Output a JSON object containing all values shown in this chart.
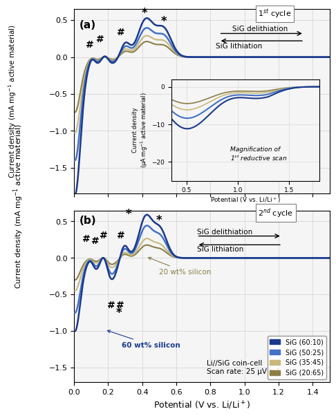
{
  "colors": {
    "dark_blue": "#1a3a8c",
    "mid_blue": "#4472c4",
    "tan_light": "#c8b87c",
    "tan_dark": "#8b7d45",
    "grid_color": "#d0d0d0",
    "bg": "#f5f5f5"
  },
  "xlim": [
    0.0,
    1.5
  ],
  "ylim_a": [
    -1.85,
    0.65
  ],
  "ylim_b": [
    -1.7,
    0.65
  ],
  "xlabel": "Potential (V vs. Li/Li$^+$)",
  "ylabel": "Current density (mA mg$^{-1}$ active material)",
  "legend_labels": [
    "SiG (60:10)",
    "SiG (50:25)",
    "SiG (35:45)",
    "SiG (20:65)"
  ],
  "legend_colors": [
    "#1a3a8c",
    "#4472c4",
    "#c8b87c",
    "#8b7d45"
  ],
  "cell_text": "Li//SiG coin-cell\nScan rate: 25 μV s⁻¹",
  "cycle1_label": "1$^{st}$ cycle",
  "cycle2_label": "2$^{nd}$ cycle",
  "inset_ylabel": "Current density\n(μA mg$^{-1}$ active material)",
  "inset_xlabel": "Potential (V vs. Li/Li$^+$)",
  "inset_text": "Magnification of\n1$^{st}$ reductive scan"
}
